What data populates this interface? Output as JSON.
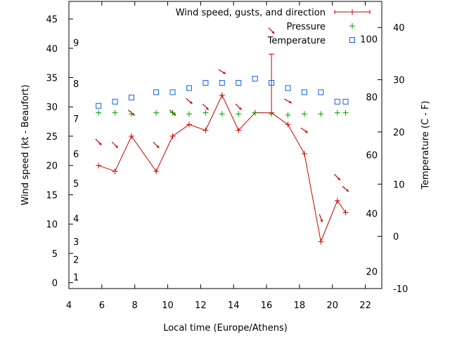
{
  "chart_data": {
    "type": "line",
    "xlabel": "Local time (Europe/Athens)",
    "ylabel": "Wind speed (kt - Beaufort)",
    "y2label": "Temperature (C - F)",
    "xlim": [
      4,
      23
    ],
    "ylim": [
      -1,
      48
    ],
    "y2lim": [
      -10,
      45
    ],
    "x_ticks": [
      4,
      6,
      8,
      10,
      12,
      14,
      16,
      18,
      20,
      22
    ],
    "y_ticks": [
      0,
      5,
      10,
      15,
      20,
      25,
      30,
      35,
      40,
      45
    ],
    "y2_ticks": [
      -10,
      0,
      10,
      20,
      30,
      40
    ],
    "beaufort_labels": [
      {
        "label": "1",
        "kt": 1
      },
      {
        "label": "2",
        "kt": 4
      },
      {
        "label": "3",
        "kt": 7
      },
      {
        "label": "4",
        "kt": 11
      },
      {
        "label": "5",
        "kt": 17
      },
      {
        "label": "6",
        "kt": 22
      },
      {
        "label": "7",
        "kt": 28
      },
      {
        "label": "8",
        "kt": 34
      },
      {
        "label": "9",
        "kt": 41
      }
    ],
    "fahrenheit_labels": [
      {
        "label": "20",
        "celsius": -6.7
      },
      {
        "label": "40",
        "celsius": 4.4
      },
      {
        "label": "60",
        "celsius": 15.6
      },
      {
        "label": "80",
        "celsius": 26.7
      },
      {
        "label": "100",
        "celsius": 37.8
      }
    ],
    "legend_position": "top-right",
    "series": [
      {
        "name": "Wind speed, gusts, and direction",
        "color": "#cc0000",
        "x": [
          5.8,
          6.8,
          7.8,
          9.3,
          10.3,
          11.3,
          12.3,
          13.3,
          14.3,
          15.3,
          16.3,
          17.3,
          18.3,
          19.3,
          20.3,
          20.8
        ],
        "values": [
          20,
          19,
          25,
          19,
          25,
          27,
          26,
          32,
          26,
          29,
          29,
          27,
          22,
          7,
          14,
          12
        ],
        "gusts": [
          null,
          null,
          null,
          null,
          null,
          null,
          null,
          null,
          null,
          null,
          39,
          null,
          null,
          null,
          null,
          null
        ],
        "arrows": [
          {
            "x": 5.8,
            "kt": 24,
            "deg": 135
          },
          {
            "x": 6.8,
            "kt": 23.5,
            "deg": 135
          },
          {
            "x": 7.8,
            "kt": 29,
            "deg": 140
          },
          {
            "x": 9.3,
            "kt": 23.5,
            "deg": 135
          },
          {
            "x": 10.3,
            "kt": 29,
            "deg": 140
          },
          {
            "x": 11.3,
            "kt": 31,
            "deg": 140
          },
          {
            "x": 12.3,
            "kt": 30,
            "deg": 135
          },
          {
            "x": 13.3,
            "kt": 36,
            "deg": 150
          },
          {
            "x": 14.3,
            "kt": 30,
            "deg": 135
          },
          {
            "x": 16.3,
            "kt": 43,
            "deg": 135
          },
          {
            "x": 17.3,
            "kt": 31,
            "deg": 150
          },
          {
            "x": 18.3,
            "kt": 26,
            "deg": 145
          },
          {
            "x": 19.3,
            "kt": 11,
            "deg": 110
          },
          {
            "x": 20.3,
            "kt": 18,
            "deg": 135
          },
          {
            "x": 20.8,
            "kt": 16,
            "deg": 140
          }
        ]
      },
      {
        "name": "Pressure",
        "color": "#00a000",
        "marker": "plus",
        "x": [
          5.8,
          6.8,
          7.8,
          9.3,
          10.3,
          11.3,
          12.3,
          13.3,
          14.3,
          15.3,
          16.3,
          17.3,
          18.3,
          19.3,
          20.3,
          20.8
        ],
        "values_kt_axis": [
          29,
          29,
          28.8,
          29,
          29,
          28.8,
          29,
          28.8,
          28.8,
          29,
          28.8,
          28.6,
          28.8,
          28.8,
          29,
          29
        ]
      },
      {
        "name": "Temperature",
        "color": "#1060e0",
        "marker": "square",
        "axis": "y2",
        "x": [
          5.8,
          6.8,
          7.8,
          9.3,
          10.3,
          11.3,
          12.3,
          13.3,
          14.3,
          15.3,
          16.3,
          17.3,
          18.3,
          19.3,
          20.3,
          20.8
        ],
        "values": [
          25,
          25.8,
          26.6,
          27.6,
          27.6,
          28.4,
          29.4,
          29.4,
          29.4,
          30.2,
          29.4,
          28.4,
          27.6,
          27.6,
          25.8,
          25.8
        ]
      }
    ]
  }
}
